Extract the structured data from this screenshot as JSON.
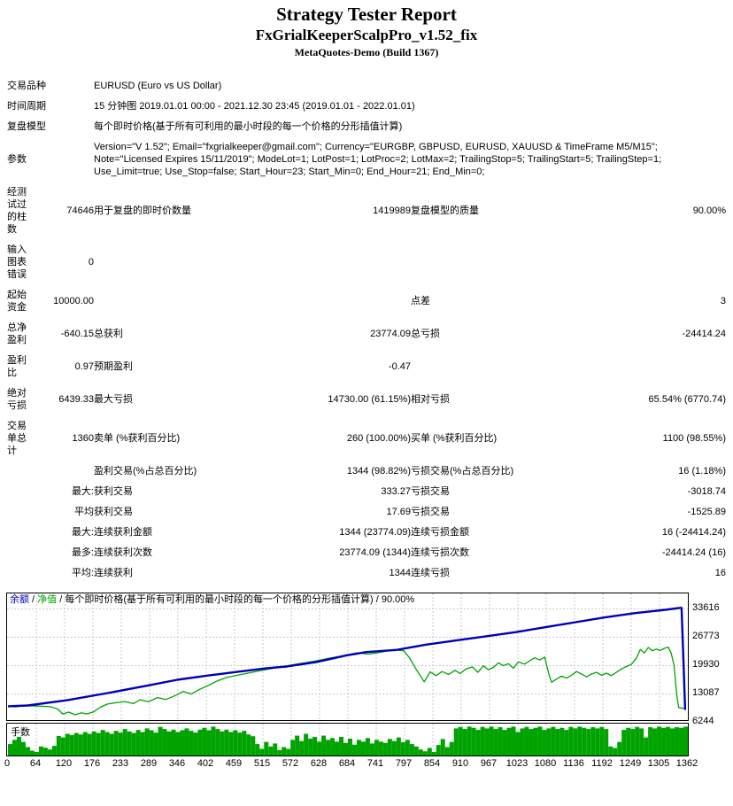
{
  "header": {
    "title": "Strategy Tester Report",
    "subtitle": "FxGrialKeeperScalpPro_v1.52_fix",
    "build": "MetaQuotes-Demo (Build 1367)"
  },
  "colors": {
    "balance": "#0000b6",
    "equity": "#00a300",
    "lots": "#00a300",
    "grid": "#c8c8c8",
    "text": "#000000"
  },
  "table": {
    "rows": [
      {
        "label": "交易品种",
        "v1": "",
        "l2": "EURUSD (Euro vs US Dollar)",
        "v2": "",
        "l3": "",
        "v3": "",
        "span": true
      },
      {
        "label": "时间周期",
        "v1": "",
        "l2": "15 分钟图 2019.01.01 00:00 - 2021.12.30 23:45 (2019.01.01 - 2022.01.01)",
        "v2": "",
        "l3": "",
        "v3": "",
        "span": true
      },
      {
        "label": "复盘模型",
        "v1": "",
        "l2": "每个即时价格(基于所有可利用的最小时段的每一个价格的分形插值计算)",
        "v2": "",
        "l3": "",
        "v3": "",
        "span": true
      },
      {
        "label": "参数",
        "v1": "",
        "l2": "Version=\"V 1.52\"; Email=\"fxgrialkeeper@gmail.com\"; Currency=\"EURGBP, GBPUSD, EURUSD, XAUUSD & TimeFrame M5/M15\"; Note=\"Licensed Expires 15/11/2019\"; ModeLot=1; LotPost=1; LotProc=2; LotMax=2; TrailingStop=5; TrailingStart=5; TrailingStep=1; Use_Limit=true; Use_Stop=false; Start_Hour=23; Start_Min=0; End_Hour=21; End_Min=0;",
        "v2": "",
        "l3": "",
        "v3": "",
        "span": true
      },
      {
        "label": "经测\n试过\n的柱\n数",
        "v1": "74646",
        "l2": "用于复盘的即时价数量",
        "v2": "1419989",
        "l3": "复盘模型的质量",
        "v3": "90.00%"
      },
      {
        "label": "输入\n图表\n错误",
        "v1": "0",
        "l2": "",
        "v2": "",
        "l3": "",
        "v3": ""
      },
      {
        "label": "起始\n资金",
        "v1": "10000.00",
        "l2": "",
        "v2": "",
        "l3": "点差",
        "v3": "3"
      },
      {
        "label": "总净\n盈利",
        "v1": "-640.15",
        "l2": "总获利",
        "v2": "23774.09",
        "l3": "总亏损",
        "v3": "-24414.24"
      },
      {
        "label": "盈利\n比",
        "v1": "0.97",
        "l2": "预期盈利",
        "v2": "-0.47",
        "l3": "",
        "v3": ""
      },
      {
        "label": "绝对\n亏损",
        "v1": "6439.33",
        "l2": "最大亏损",
        "v2": "14730.00 (61.15%)",
        "l3": "相对亏损",
        "v3": "65.54% (6770.74)"
      },
      {
        "label": "交易\n单总\n计",
        "v1": "1360",
        "l2": "卖单 (%获利百分比)",
        "v2": "260 (100.00%)",
        "l3": "买单 (%获利百分比)",
        "v3": "1100 (98.55%)"
      },
      {
        "label": "",
        "v1": "",
        "l2": "盈利交易(%占总百分比)",
        "v2": "1344 (98.82%)",
        "l3": "亏损交易(%占总百分比)",
        "v3": "16 (1.18%)"
      },
      {
        "label": "",
        "v1": "最大:",
        "l2": "获利交易",
        "v2": "333.27",
        "l3": "亏损交易",
        "v3": "-3018.74"
      },
      {
        "label": "",
        "v1": "平均",
        "l2": "获利交易",
        "v2": "17.69",
        "l3": "亏损交易",
        "v3": "-1525.89"
      },
      {
        "label": "",
        "v1": "最大:",
        "l2": "连续获利金额",
        "v2": "1344 (23774.09)",
        "l3": "连续亏损金额",
        "v3": "16 (-24414.24)"
      },
      {
        "label": "",
        "v1": "最多:",
        "l2": "连续获利次数",
        "v2": "23774.09 (1344)",
        "l3": "连续亏损次数",
        "v3": "-24414.24 (16)"
      },
      {
        "label": "",
        "v1": "平均:",
        "l2": "连续获利",
        "v2": "1344",
        "l3": "连续亏损",
        "v3": "16"
      }
    ]
  },
  "chart_data": {
    "type": "line",
    "legend": {
      "balance": "余额",
      "equity": "净值",
      "model": "每个即时价格(基于所有可利用的最小时段的每一个价格的分形插值计算)",
      "quality": "90.00%",
      "sep": " / "
    },
    "x_range": [
      0,
      1362
    ],
    "y_ticks": [
      33616,
      26773,
      19930,
      13087,
      6244
    ],
    "x_ticks": [
      0,
      64,
      120,
      176,
      233,
      289,
      346,
      402,
      459,
      515,
      572,
      628,
      684,
      741,
      797,
      854,
      910,
      967,
      1023,
      1080,
      1136,
      1192,
      1249,
      1305,
      1362
    ],
    "grid": true,
    "series": [
      {
        "name": "余额",
        "points": [
          [
            0,
            10000
          ],
          [
            40,
            10200
          ],
          [
            120,
            11500
          ],
          [
            200,
            13200
          ],
          [
            280,
            15000
          ],
          [
            340,
            16400
          ],
          [
            400,
            17400
          ],
          [
            460,
            18300
          ],
          [
            520,
            19200
          ],
          [
            560,
            19600
          ],
          [
            620,
            20700
          ],
          [
            680,
            22300
          ],
          [
            720,
            23100
          ],
          [
            780,
            23600
          ],
          [
            840,
            24900
          ],
          [
            900,
            25900
          ],
          [
            960,
            26900
          ],
          [
            1020,
            27900
          ],
          [
            1080,
            29100
          ],
          [
            1140,
            30300
          ],
          [
            1200,
            31500
          ],
          [
            1260,
            32500
          ],
          [
            1320,
            33300
          ],
          [
            1350,
            33774
          ],
          [
            1353,
            33774
          ],
          [
            1357,
            20000
          ],
          [
            1360,
            9359.85
          ],
          [
            1362,
            9359.85
          ]
        ]
      },
      {
        "name": "净值",
        "points": [
          [
            0,
            10000
          ],
          [
            15,
            9850
          ],
          [
            35,
            10150
          ],
          [
            60,
            10050
          ],
          [
            85,
            9900
          ],
          [
            100,
            9350
          ],
          [
            110,
            8150
          ],
          [
            122,
            8600
          ],
          [
            135,
            7950
          ],
          [
            148,
            8450
          ],
          [
            158,
            8150
          ],
          [
            172,
            8650
          ],
          [
            185,
            9750
          ],
          [
            200,
            10550
          ],
          [
            215,
            10850
          ],
          [
            235,
            11150
          ],
          [
            252,
            10650
          ],
          [
            265,
            11600
          ],
          [
            282,
            11100
          ],
          [
            300,
            12100
          ],
          [
            318,
            11650
          ],
          [
            338,
            12700
          ],
          [
            352,
            13600
          ],
          [
            368,
            12950
          ],
          [
            385,
            14100
          ],
          [
            400,
            14900
          ],
          [
            420,
            16100
          ],
          [
            440,
            17000
          ],
          [
            465,
            17600
          ],
          [
            490,
            18200
          ],
          [
            515,
            18800
          ],
          [
            540,
            19300
          ],
          [
            565,
            19900
          ],
          [
            590,
            20400
          ],
          [
            615,
            20900
          ],
          [
            640,
            21500
          ],
          [
            665,
            22000
          ],
          [
            685,
            22500
          ],
          [
            700,
            22900
          ],
          [
            725,
            22600
          ],
          [
            750,
            23100
          ],
          [
            775,
            23700
          ],
          [
            795,
            23400
          ],
          [
            806,
            21800
          ],
          [
            820,
            18900
          ],
          [
            836,
            15900
          ],
          [
            848,
            18300
          ],
          [
            860,
            17400
          ],
          [
            872,
            18400
          ],
          [
            885,
            17700
          ],
          [
            898,
            18700
          ],
          [
            908,
            17900
          ],
          [
            920,
            19000
          ],
          [
            933,
            19500
          ],
          [
            944,
            18200
          ],
          [
            955,
            19800
          ],
          [
            965,
            18800
          ],
          [
            975,
            19400
          ],
          [
            985,
            20500
          ],
          [
            995,
            19800
          ],
          [
            1005,
            20300
          ],
          [
            1015,
            19200
          ],
          [
            1025,
            20700
          ],
          [
            1038,
            20200
          ],
          [
            1048,
            21000
          ],
          [
            1058,
            21700
          ],
          [
            1068,
            21200
          ],
          [
            1078,
            21900
          ],
          [
            1086,
            17900
          ],
          [
            1092,
            15800
          ],
          [
            1102,
            16600
          ],
          [
            1112,
            17300
          ],
          [
            1122,
            16800
          ],
          [
            1132,
            17500
          ],
          [
            1142,
            18400
          ],
          [
            1152,
            17800
          ],
          [
            1162,
            17100
          ],
          [
            1172,
            17800
          ],
          [
            1182,
            18200
          ],
          [
            1192,
            17500
          ],
          [
            1202,
            18000
          ],
          [
            1212,
            17400
          ],
          [
            1222,
            18200
          ],
          [
            1232,
            19000
          ],
          [
            1242,
            19600
          ],
          [
            1252,
            20100
          ],
          [
            1262,
            21600
          ],
          [
            1270,
            23700
          ],
          [
            1278,
            22900
          ],
          [
            1286,
            24200
          ],
          [
            1294,
            23400
          ],
          [
            1302,
            23800
          ],
          [
            1310,
            23500
          ],
          [
            1318,
            24000
          ],
          [
            1326,
            24300
          ],
          [
            1332,
            22900
          ],
          [
            1338,
            19800
          ],
          [
            1343,
            13000
          ],
          [
            1347,
            9700
          ],
          [
            1362,
            9359.85
          ]
        ]
      }
    ],
    "histogram": {
      "label": "手数",
      "bars": [
        0.38,
        0.52,
        0.62,
        0.45,
        0.28,
        0.16,
        0.12,
        0.3,
        0.26,
        0.2,
        0.32,
        0.65,
        0.6,
        0.72,
        0.68,
        0.75,
        0.7,
        0.78,
        0.72,
        0.8,
        0.75,
        0.85,
        0.78,
        0.72,
        0.82,
        0.76,
        0.88,
        0.8,
        0.75,
        0.85,
        0.78,
        0.9,
        0.84,
        0.76,
        0.95,
        0.88,
        0.8,
        0.86,
        0.78,
        0.84,
        0.9,
        0.82,
        0.76,
        0.86,
        0.92,
        0.84,
        0.96,
        0.88,
        0.8,
        0.86,
        0.78,
        0.84,
        0.76,
        0.82,
        0.7,
        0.64,
        0.38,
        0.22,
        0.45,
        0.3,
        0.4,
        0.18,
        0.28,
        0.22,
        0.52,
        0.66,
        0.48,
        0.72,
        0.56,
        0.62,
        0.46,
        0.66,
        0.52,
        0.58,
        0.46,
        0.62,
        0.42,
        0.56,
        0.36,
        0.52,
        0.46,
        0.58,
        0.4,
        0.52,
        0.46,
        0.42,
        0.55,
        0.48,
        0.6,
        0.44,
        0.52,
        0.38,
        0.3,
        0.2,
        0.14,
        0.25,
        0.12,
        0.35,
        0.55,
        0.28,
        0.45,
        0.9,
        0.95,
        0.88,
        0.96,
        0.92,
        0.85,
        0.95,
        0.9,
        0.96,
        0.88,
        0.94,
        0.85,
        0.92,
        0.96,
        0.78,
        0.9,
        0.95,
        0.88,
        0.92,
        0.96,
        0.85,
        0.9,
        0.95,
        0.88,
        0.92,
        0.85,
        0.95,
        0.9,
        0.96,
        0.92,
        0.88,
        0.94,
        0.9,
        0.95,
        0.88,
        0.3,
        0.25,
        0.45,
        0.85,
        0.92,
        0.88,
        0.95,
        0.9,
        0.6,
        0.94,
        0.9,
        0.96,
        0.92,
        0.95,
        0.9,
        0.94,
        0.92,
        0.96
      ]
    }
  }
}
